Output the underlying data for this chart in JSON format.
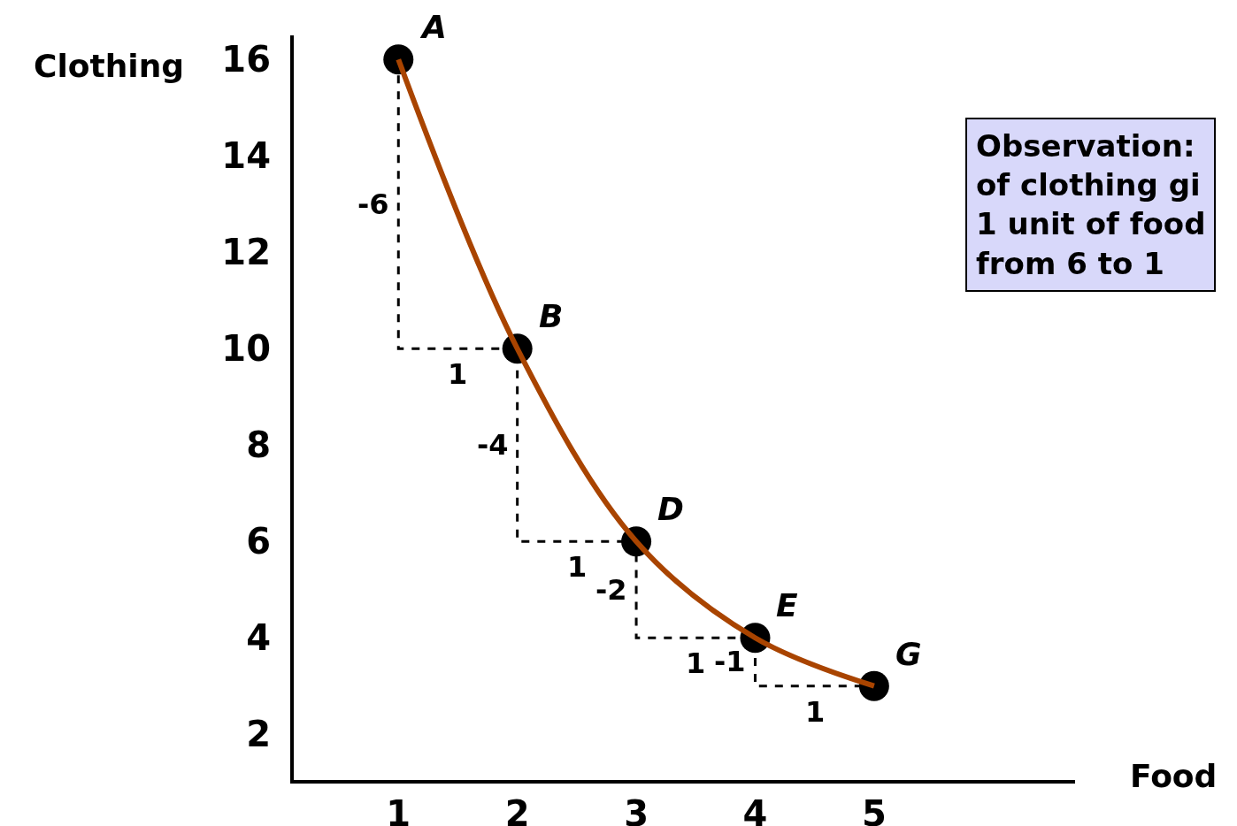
{
  "chart_data": {
    "type": "line",
    "xlabel": "Food",
    "ylabel": "Clothing",
    "xlim": [
      0.12,
      6.69
    ],
    "ylim": [
      1.05,
      16.5
    ],
    "xticks": [
      1,
      2,
      3,
      4,
      5
    ],
    "yticks": [
      2,
      4,
      6,
      8,
      10,
      12,
      14,
      16
    ],
    "grid": false,
    "series": [
      {
        "type": "scatter",
        "color": "#000000",
        "marker": "circle",
        "x": [
          1,
          2,
          3,
          4,
          5
        ],
        "values": [
          16,
          10,
          6,
          4,
          3
        ]
      },
      {
        "type": "line",
        "color": "#000000",
        "line_style": "dashed",
        "marker": "none",
        "x": [
          1,
          1,
          2,
          2,
          3,
          3,
          4,
          4,
          5
        ],
        "values": [
          16,
          10,
          10,
          6,
          6,
          4,
          4,
          3,
          3
        ]
      },
      {
        "type": "line",
        "color": "#a94400",
        "line_style": "solid",
        "marker": "none",
        "x": [
          1,
          2,
          3,
          4,
          5
        ],
        "values": [
          16,
          10,
          6,
          4,
          3
        ]
      }
    ],
    "annotations": [
      {
        "text": "A",
        "x": 1,
        "y": 16
      },
      {
        "text": "B",
        "x": 2,
        "y": 10
      },
      {
        "text": "D",
        "x": 3,
        "y": 6
      },
      {
        "text": "E",
        "x": 4,
        "y": 4
      },
      {
        "text": "G",
        "x": 5,
        "y": 3
      },
      {
        "text": "-6",
        "x": 1,
        "y": 13
      },
      {
        "text": "1",
        "x": 1.5,
        "y": 10
      },
      {
        "text": "-4",
        "x": 2,
        "y": 8
      },
      {
        "text": "1",
        "x": 2.5,
        "y": 6
      },
      {
        "text": "-2",
        "x": 3,
        "y": 5
      },
      {
        "text": "1",
        "x": 3.5,
        "y": 4
      },
      {
        "text": "-1",
        "x": 4,
        "y": 3.5
      },
      {
        "text": "1",
        "x": 4.5,
        "y": 3
      },
      "Observation:\nof clothing gi\n1 unit of food\nfrom 6 to 1"
    ]
  }
}
